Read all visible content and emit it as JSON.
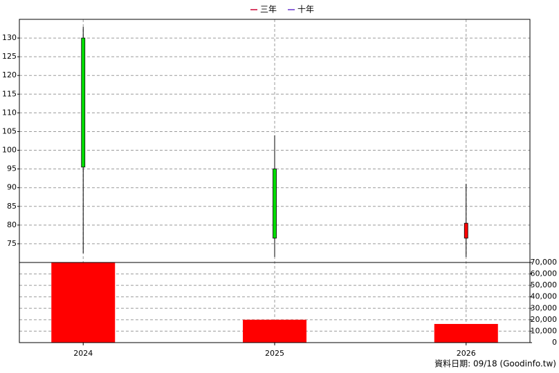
{
  "chart_data": [
    {
      "type": "candlestick",
      "categories": [
        "2024",
        "2025",
        "2026"
      ],
      "open": [
        130,
        95,
        76.5
      ],
      "high": [
        133,
        104,
        91
      ],
      "low": [
        72.5,
        71.5,
        71.5
      ],
      "close": [
        95.5,
        76.5,
        80.5
      ],
      "up_color": "#ff0000",
      "down_color": "#00dd00",
      "series": [
        {
          "name": "三年",
          "color": "#cc0033",
          "values": [
            null,
            null,
            null
          ]
        },
        {
          "name": "十年",
          "color": "#6633cc",
          "values": [
            null,
            null,
            null
          ]
        }
      ],
      "ylim": [
        70,
        135
      ],
      "yticks": [
        75,
        80,
        85,
        90,
        95,
        100,
        105,
        110,
        115,
        120,
        125,
        130
      ],
      "grid": true
    },
    {
      "type": "bar",
      "categories": [
        "2024",
        "2025",
        "2026"
      ],
      "values": [
        70000,
        20000,
        16300
      ],
      "color": "#ff0000",
      "ylim": [
        0,
        70000
      ],
      "yticks": [
        0,
        {
          "value": 10000,
          "label": "10,000"
        },
        {
          "value": 20000,
          "label": "20,000"
        },
        {
          "value": 30000,
          "label": "30,000"
        },
        {
          "value": 40000,
          "label": "40,000"
        },
        {
          "value": 50000,
          "label": "50,000"
        },
        {
          "value": 60000,
          "label": "60,000"
        },
        {
          "value": 70000,
          "label": "70,000"
        }
      ],
      "grid": true
    }
  ],
  "footer": "資料日期: 09/18  (Goodinfo.tw)"
}
